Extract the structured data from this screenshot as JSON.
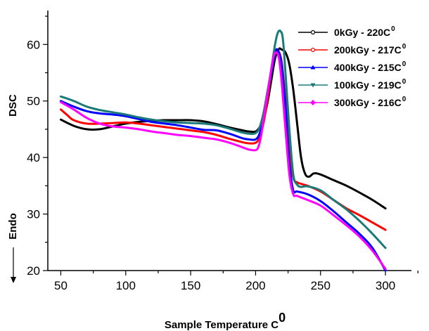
{
  "chart_data": {
    "type": "line",
    "title": "",
    "xlabel": "Sample Temperature C",
    "xlabel_sup": "0",
    "ylabel": "DSC",
    "ylabel_secondary": "Endo",
    "xlim": [
      40,
      320
    ],
    "ylim": [
      20,
      66
    ],
    "xticks": [
      50,
      100,
      150,
      200,
      250,
      300
    ],
    "yticks": [
      20,
      30,
      40,
      50,
      60
    ],
    "grid": false,
    "legend_position": "top-right",
    "series": [
      {
        "name": "0kGy - 220C",
        "name_sup": "0",
        "color": "#000000",
        "marker": "circle",
        "x": [
          50,
          60,
          70,
          80,
          90,
          100,
          110,
          120,
          130,
          140,
          150,
          160,
          170,
          180,
          190,
          195,
          200,
          203,
          206,
          209,
          212,
          215,
          218,
          220,
          223,
          226,
          229,
          232,
          235,
          238,
          241,
          245,
          250,
          260,
          270,
          280,
          290,
          300
        ],
        "y": [
          46.7,
          45.6,
          45.0,
          45.0,
          45.5,
          46.0,
          46.3,
          46.5,
          46.6,
          46.6,
          46.6,
          46.4,
          45.9,
          45.3,
          44.8,
          44.6,
          44.6,
          45.3,
          46.8,
          49.5,
          53.5,
          57.5,
          59.2,
          59.1,
          58.6,
          56.5,
          52.0,
          46.0,
          40.0,
          37.2,
          36.6,
          37.2,
          37.0,
          36.0,
          35.0,
          33.8,
          32.5,
          31.0
        ]
      },
      {
        "name": "200kGy - 217C",
        "name_sup": "0",
        "color": "#ff0000",
        "marker": "circle",
        "x": [
          50,
          55,
          60,
          70,
          80,
          90,
          100,
          110,
          120,
          130,
          140,
          150,
          160,
          170,
          180,
          190,
          195,
          200,
          203,
          206,
          209,
          212,
          215,
          217,
          220,
          223,
          226,
          229,
          232,
          240,
          250,
          260,
          270,
          280,
          290,
          300
        ],
        "y": [
          48.5,
          47.5,
          46.6,
          46.0,
          46.0,
          46.1,
          46.2,
          46.0,
          45.7,
          45.4,
          45.1,
          44.8,
          44.5,
          44.0,
          43.3,
          42.7,
          42.5,
          42.6,
          43.5,
          46.0,
          50.0,
          55.0,
          58.5,
          59.0,
          57.0,
          50.0,
          41.0,
          36.5,
          35.6,
          35.0,
          34.0,
          32.5,
          31.0,
          29.8,
          28.5,
          27.2
        ]
      },
      {
        "name": "400kGy - 215C",
        "name_sup": "0",
        "color": "#0000ff",
        "marker": "triangle-up",
        "x": [
          50,
          60,
          70,
          80,
          90,
          100,
          110,
          120,
          130,
          140,
          150,
          160,
          170,
          180,
          190,
          195,
          200,
          203,
          206,
          209,
          212,
          215,
          217,
          220,
          223,
          226,
          229,
          232,
          240,
          250,
          260,
          270,
          280,
          290,
          300
        ],
        "y": [
          50.0,
          49.0,
          48.2,
          47.8,
          47.6,
          47.3,
          46.8,
          46.3,
          46.0,
          45.7,
          45.3,
          44.9,
          44.8,
          44.2,
          43.4,
          43.2,
          43.2,
          44.2,
          47.0,
          51.0,
          55.0,
          58.5,
          59.0,
          56.5,
          49.0,
          39.0,
          34.2,
          34.0,
          33.5,
          32.3,
          30.5,
          28.5,
          26.5,
          24.0,
          20.0
        ]
      },
      {
        "name": "100kGy - 219C",
        "name_sup": "0",
        "color": "#1a7a7a",
        "marker": "triangle-down",
        "x": [
          50,
          60,
          70,
          80,
          90,
          100,
          110,
          120,
          130,
          140,
          150,
          160,
          170,
          180,
          190,
          195,
          200,
          203,
          206,
          209,
          212,
          215,
          217,
          219,
          221,
          223,
          226,
          229,
          232,
          235,
          240,
          250,
          260,
          270,
          280,
          290,
          300
        ],
        "y": [
          50.8,
          50.0,
          49.0,
          48.4,
          48.0,
          47.6,
          47.1,
          46.7,
          46.4,
          46.2,
          46.1,
          46.0,
          45.7,
          45.1,
          44.4,
          44.2,
          44.3,
          45.3,
          47.8,
          51.5,
          55.5,
          60.0,
          62.0,
          62.4,
          61.0,
          55.0,
          45.0,
          37.0,
          35.2,
          34.8,
          34.9,
          34.2,
          32.5,
          30.8,
          28.8,
          26.5,
          24.0
        ]
      },
      {
        "name": "300kGy - 216C",
        "name_sup": "0",
        "color": "#ff00ff",
        "marker": "diamond",
        "x": [
          50,
          60,
          70,
          80,
          90,
          100,
          110,
          120,
          130,
          140,
          150,
          160,
          170,
          180,
          190,
          195,
          200,
          202,
          204,
          206,
          209,
          212,
          214,
          216,
          218,
          220,
          223,
          226,
          229,
          232,
          240,
          250,
          260,
          270,
          280,
          290,
          300
        ],
        "y": [
          49.8,
          48.5,
          47.0,
          46.0,
          45.5,
          45.3,
          45.0,
          44.6,
          44.3,
          44.0,
          43.8,
          43.5,
          43.2,
          42.6,
          41.8,
          41.4,
          41.3,
          41.8,
          43.5,
          46.5,
          51.0,
          55.5,
          58.0,
          58.6,
          57.5,
          53.5,
          45.0,
          37.0,
          33.5,
          33.2,
          32.5,
          31.5,
          29.8,
          28.0,
          26.0,
          23.5,
          20.3
        ]
      }
    ]
  }
}
